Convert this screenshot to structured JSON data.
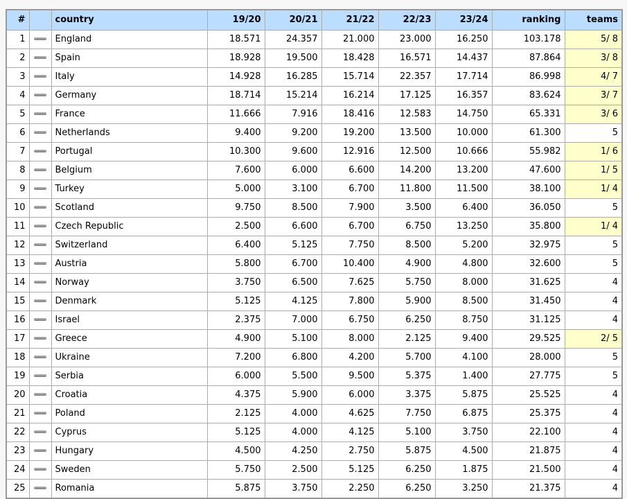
{
  "colors": {
    "page_bg": "#f7f7f7",
    "header_bg": "#bbddff",
    "cell_bg": "#ffffff",
    "highlight_bg": "#ffffcc",
    "cell_border": "#ababab",
    "outer_border": "#999999",
    "text": "#000000",
    "dash_light": "#b3b3b3",
    "dash_dark": "#808080"
  },
  "table": {
    "columns": [
      {
        "key": "rank",
        "label": "#",
        "align": "right"
      },
      {
        "key": "trend",
        "label": "",
        "align": "center"
      },
      {
        "key": "country",
        "label": "country",
        "align": "left"
      },
      {
        "key": "s1920",
        "label": "19/20",
        "align": "right"
      },
      {
        "key": "s2021",
        "label": "20/21",
        "align": "right"
      },
      {
        "key": "s2122",
        "label": "21/22",
        "align": "right"
      },
      {
        "key": "s2223",
        "label": "22/23",
        "align": "right"
      },
      {
        "key": "s2324",
        "label": "23/24",
        "align": "right"
      },
      {
        "key": "ranking",
        "label": "ranking",
        "align": "right"
      },
      {
        "key": "teams",
        "label": "teams",
        "align": "right"
      }
    ],
    "rows": [
      {
        "rank": "1",
        "trend": "no-change",
        "country": "England",
        "s1920": "18.571",
        "s2021": "24.357",
        "s2122": "21.000",
        "s2223": "23.000",
        "s2324": "16.250",
        "ranking": "103.178",
        "teams": "5/ 8"
      },
      {
        "rank": "2",
        "trend": "no-change",
        "country": "Spain",
        "s1920": "18.928",
        "s2021": "19.500",
        "s2122": "18.428",
        "s2223": "16.571",
        "s2324": "14.437",
        "ranking": "87.864",
        "teams": "3/ 8"
      },
      {
        "rank": "3",
        "trend": "no-change",
        "country": "Italy",
        "s1920": "14.928",
        "s2021": "16.285",
        "s2122": "15.714",
        "s2223": "22.357",
        "s2324": "17.714",
        "ranking": "86.998",
        "teams": "4/ 7"
      },
      {
        "rank": "4",
        "trend": "no-change",
        "country": "Germany",
        "s1920": "18.714",
        "s2021": "15.214",
        "s2122": "16.214",
        "s2223": "17.125",
        "s2324": "16.357",
        "ranking": "83.624",
        "teams": "3/ 7"
      },
      {
        "rank": "5",
        "trend": "no-change",
        "country": "France",
        "s1920": "11.666",
        "s2021": "7.916",
        "s2122": "18.416",
        "s2223": "12.583",
        "s2324": "14.750",
        "ranking": "65.331",
        "teams": "3/ 6"
      },
      {
        "rank": "6",
        "trend": "no-change",
        "country": "Netherlands",
        "s1920": "9.400",
        "s2021": "9.200",
        "s2122": "19.200",
        "s2223": "13.500",
        "s2324": "10.000",
        "ranking": "61.300",
        "teams": "5"
      },
      {
        "rank": "7",
        "trend": "no-change",
        "country": "Portugal",
        "s1920": "10.300",
        "s2021": "9.600",
        "s2122": "12.916",
        "s2223": "12.500",
        "s2324": "10.666",
        "ranking": "55.982",
        "teams": "1/ 6"
      },
      {
        "rank": "8",
        "trend": "no-change",
        "country": "Belgium",
        "s1920": "7.600",
        "s2021": "6.000",
        "s2122": "6.600",
        "s2223": "14.200",
        "s2324": "13.200",
        "ranking": "47.600",
        "teams": "1/ 5"
      },
      {
        "rank": "9",
        "trend": "no-change",
        "country": "Turkey",
        "s1920": "5.000",
        "s2021": "3.100",
        "s2122": "6.700",
        "s2223": "11.800",
        "s2324": "11.500",
        "ranking": "38.100",
        "teams": "1/ 4"
      },
      {
        "rank": "10",
        "trend": "no-change",
        "country": "Scotland",
        "s1920": "9.750",
        "s2021": "8.500",
        "s2122": "7.900",
        "s2223": "3.500",
        "s2324": "6.400",
        "ranking": "36.050",
        "teams": "5"
      },
      {
        "rank": "11",
        "trend": "no-change",
        "country": "Czech Republic",
        "s1920": "2.500",
        "s2021": "6.600",
        "s2122": "6.700",
        "s2223": "6.750",
        "s2324": "13.250",
        "ranking": "35.800",
        "teams": "1/ 4"
      },
      {
        "rank": "12",
        "trend": "no-change",
        "country": "Switzerland",
        "s1920": "6.400",
        "s2021": "5.125",
        "s2122": "7.750",
        "s2223": "8.500",
        "s2324": "5.200",
        "ranking": "32.975",
        "teams": "5"
      },
      {
        "rank": "13",
        "trend": "no-change",
        "country": "Austria",
        "s1920": "5.800",
        "s2021": "6.700",
        "s2122": "10.400",
        "s2223": "4.900",
        "s2324": "4.800",
        "ranking": "32.600",
        "teams": "5"
      },
      {
        "rank": "14",
        "trend": "no-change",
        "country": "Norway",
        "s1920": "3.750",
        "s2021": "6.500",
        "s2122": "7.625",
        "s2223": "5.750",
        "s2324": "8.000",
        "ranking": "31.625",
        "teams": "4"
      },
      {
        "rank": "15",
        "trend": "no-change",
        "country": "Denmark",
        "s1920": "5.125",
        "s2021": "4.125",
        "s2122": "7.800",
        "s2223": "5.900",
        "s2324": "8.500",
        "ranking": "31.450",
        "teams": "4"
      },
      {
        "rank": "16",
        "trend": "no-change",
        "country": "Israel",
        "s1920": "2.375",
        "s2021": "7.000",
        "s2122": "6.750",
        "s2223": "6.250",
        "s2324": "8.750",
        "ranking": "31.125",
        "teams": "4"
      },
      {
        "rank": "17",
        "trend": "no-change",
        "country": "Greece",
        "s1920": "4.900",
        "s2021": "5.100",
        "s2122": "8.000",
        "s2223": "2.125",
        "s2324": "9.400",
        "ranking": "29.525",
        "teams": "2/ 5"
      },
      {
        "rank": "18",
        "trend": "no-change",
        "country": "Ukraine",
        "s1920": "7.200",
        "s2021": "6.800",
        "s2122": "4.200",
        "s2223": "5.700",
        "s2324": "4.100",
        "ranking": "28.000",
        "teams": "5"
      },
      {
        "rank": "19",
        "trend": "no-change",
        "country": "Serbia",
        "s1920": "6.000",
        "s2021": "5.500",
        "s2122": "9.500",
        "s2223": "5.375",
        "s2324": "1.400",
        "ranking": "27.775",
        "teams": "5"
      },
      {
        "rank": "20",
        "trend": "no-change",
        "country": "Croatia",
        "s1920": "4.375",
        "s2021": "5.900",
        "s2122": "6.000",
        "s2223": "3.375",
        "s2324": "5.875",
        "ranking": "25.525",
        "teams": "4"
      },
      {
        "rank": "21",
        "trend": "no-change",
        "country": "Poland",
        "s1920": "2.125",
        "s2021": "4.000",
        "s2122": "4.625",
        "s2223": "7.750",
        "s2324": "6.875",
        "ranking": "25.375",
        "teams": "4"
      },
      {
        "rank": "22",
        "trend": "no-change",
        "country": "Cyprus",
        "s1920": "5.125",
        "s2021": "4.000",
        "s2122": "4.125",
        "s2223": "5.100",
        "s2324": "3.750",
        "ranking": "22.100",
        "teams": "4"
      },
      {
        "rank": "23",
        "trend": "no-change",
        "country": "Hungary",
        "s1920": "4.500",
        "s2021": "4.250",
        "s2122": "2.750",
        "s2223": "5.875",
        "s2324": "4.500",
        "ranking": "21.875",
        "teams": "4"
      },
      {
        "rank": "24",
        "trend": "no-change",
        "country": "Sweden",
        "s1920": "5.750",
        "s2021": "2.500",
        "s2122": "5.125",
        "s2223": "6.250",
        "s2324": "1.875",
        "ranking": "21.500",
        "teams": "4"
      },
      {
        "rank": "25",
        "trend": "no-change",
        "country": "Romania",
        "s1920": "5.875",
        "s2021": "3.750",
        "s2122": "2.250",
        "s2223": "6.250",
        "s2324": "3.250",
        "ranking": "21.375",
        "teams": "4"
      }
    ]
  }
}
